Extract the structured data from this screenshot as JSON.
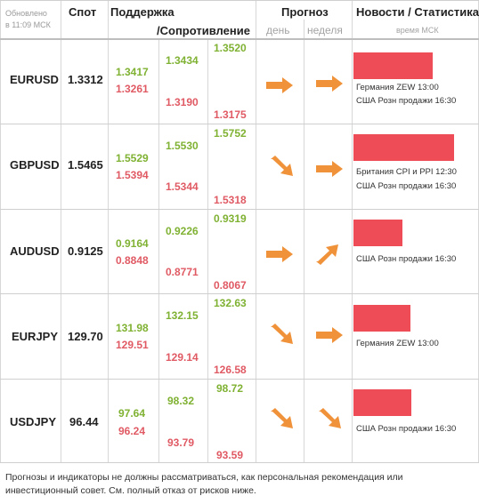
{
  "header": {
    "updated_line1": "Обновлено",
    "updated_line2": "в 11:09 МСК",
    "spot": "Спот",
    "support": "Поддержка",
    "resistance": "/Сопротивление",
    "forecast": "Прогноз",
    "day": "день",
    "week": "неделя",
    "news": "Новости / Статистика",
    "time": "время МСК"
  },
  "colors": {
    "support": "#7fb132",
    "resistance": "#e05a64",
    "arrow": "#f0923a",
    "news_bar": "#ee4c56"
  },
  "rows": [
    {
      "symbol": "EURUSD",
      "spot": "1.3312",
      "s1": "1.3417",
      "r1": "1.3261",
      "s2": "1.3434",
      "r2": "1.3190",
      "s3": "1.3520",
      "r3": "1.3175",
      "day_arrow": "arrow-right-icon",
      "week_arrow": "arrow-right-icon",
      "news": [
        "Германия ZEW 13:00",
        "США Розн продажи 16:30"
      ]
    },
    {
      "symbol": "GBPUSD",
      "spot": "1.5465",
      "s1": "1.5529",
      "r1": "1.5394",
      "s2": "1.5530",
      "r2": "1.5344",
      "s3": "1.5752",
      "r3": "1.5318",
      "day_arrow": "arrow-down-right-icon",
      "week_arrow": "arrow-right-icon",
      "news": [
        "Бритaния CPI и PPI 12:30",
        "США Розн продажи 16:30"
      ]
    },
    {
      "symbol": "AUDUSD",
      "spot": "0.9125",
      "s1": "0.9164",
      "r1": "0.8848",
      "s2": "0.9226",
      "r2": "0.8771",
      "s3": "0.9319",
      "r3": "0.8067",
      "day_arrow": "arrow-right-icon",
      "week_arrow": "arrow-up-right-icon",
      "news": [
        "США Розн продажи 16:30"
      ]
    },
    {
      "symbol": "EURJPY",
      "spot": "129.70",
      "s1": "131.98",
      "r1": "129.51",
      "s2": "132.15",
      "r2": "129.14",
      "s3": "132.63",
      "r3": "126.58",
      "day_arrow": "arrow-down-right-icon",
      "week_arrow": "arrow-right-icon",
      "news": [
        "Германия ZEW 13:00"
      ]
    },
    {
      "symbol": "USDJPY",
      "spot": "96.44",
      "s1": "97.64",
      "r1": "96.24",
      "s2": "98.32",
      "r2": "93.79",
      "s3": "98.72",
      "r3": "93.59",
      "day_arrow": "arrow-down-right-icon",
      "week_arrow": "arrow-down-right-icon",
      "news": [
        "США Розн продажи 16:30"
      ]
    }
  ],
  "disclaimer": "Прогнозы и индикаторы не должны рассматриваться, как персональная рекомендация или инвестиционный совет. См. полный отказ от рисков ниже."
}
